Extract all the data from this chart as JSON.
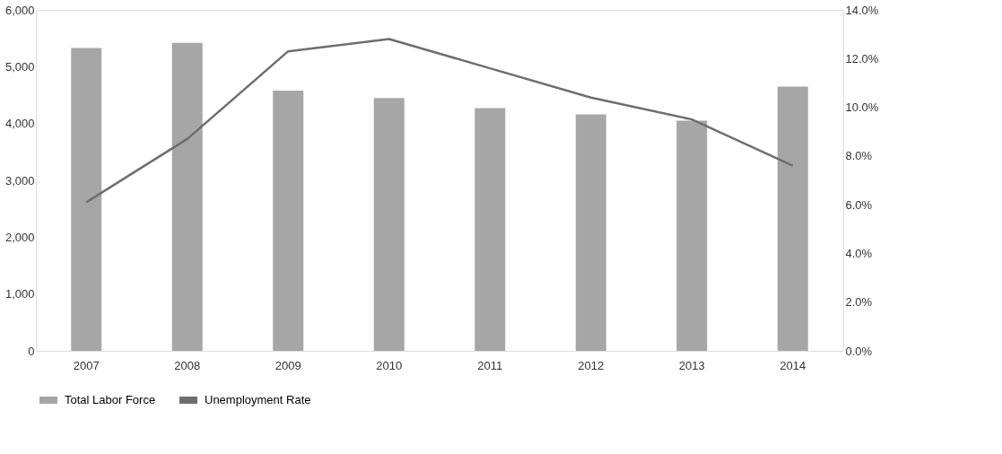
{
  "chart_data": {
    "type": "bar",
    "categories": [
      "2007",
      "2008",
      "2009",
      "2010",
      "2011",
      "2012",
      "2013",
      "2014"
    ],
    "series": [
      {
        "name": "Total Labor Force",
        "color": "#a6a6a6",
        "values": [
          5330,
          5420,
          4580,
          4450,
          4270,
          4160,
          4050,
          4650
        ]
      },
      {
        "name": "Unemployment Rate",
        "type": "line",
        "axis": "y2",
        "color": "#6e6e6e",
        "values": [
          6.1,
          8.7,
          12.3,
          12.8,
          11.6,
          10.4,
          9.5,
          7.6
        ]
      }
    ],
    "ylim": [
      0,
      6000
    ],
    "yticks": [
      {
        "value": 0,
        "label": "0"
      },
      {
        "value": 1000,
        "label": "1,000"
      },
      {
        "value": 2000,
        "label": "2,000"
      },
      {
        "value": 3000,
        "label": "3,000"
      },
      {
        "value": 4000,
        "label": "4,000"
      },
      {
        "value": 5000,
        "label": "5,000"
      },
      {
        "value": 6000,
        "label": "6,000"
      }
    ],
    "y2lim": [
      0,
      14
    ],
    "y2ticks": [
      {
        "value": 0,
        "label": "0.0%"
      },
      {
        "value": 2,
        "label": "2.0%"
      },
      {
        "value": 4,
        "label": "4.0%"
      },
      {
        "value": 6,
        "label": "6.0%"
      },
      {
        "value": 8,
        "label": "8.0%"
      },
      {
        "value": 10,
        "label": "10.0%"
      },
      {
        "value": 12,
        "label": "12.0%"
      },
      {
        "value": 14,
        "label": "14.0%"
      }
    ],
    "grid": false,
    "legend": "bottom",
    "marker": "none",
    "line_style": "solid"
  }
}
